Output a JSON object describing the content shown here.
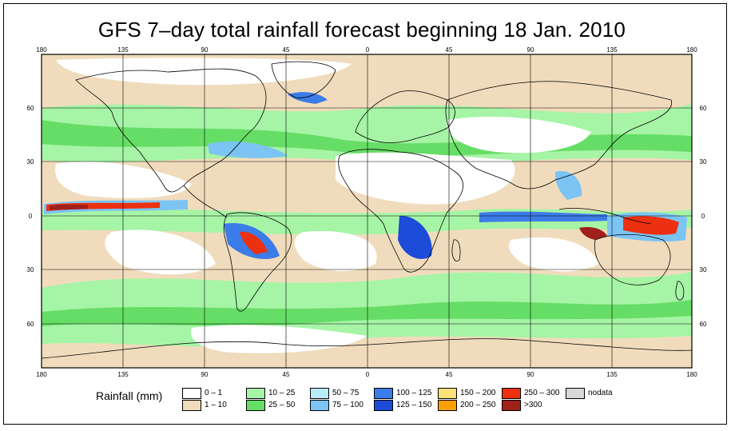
{
  "title": "GFS 7–day total rainfall forecast beginning 18 Jan. 2010",
  "axes": {
    "top_lon_labels": [
      "180",
      "135",
      "90",
      "45",
      "0",
      "45",
      "90",
      "135",
      "180"
    ],
    "bottom_lon_labels": [
      "180",
      "135",
      "90",
      "45",
      "0",
      "45",
      "90",
      "135",
      "180"
    ],
    "left_lat_labels": [
      "60",
      "30",
      "0",
      "30",
      "60"
    ],
    "right_lat_labels": [
      "60",
      "30",
      "0",
      "30",
      "60"
    ]
  },
  "legend": {
    "title": "Rainfall (mm)",
    "items": [
      {
        "label": "0 – 1",
        "color": "#ffffff"
      },
      {
        "label": "1 – 10",
        "color": "#f0dcbc"
      },
      {
        "label": "10 – 25",
        "color": "#a6f4a6"
      },
      {
        "label": "25 – 50",
        "color": "#66dd66"
      },
      {
        "label": "50 – 75",
        "color": "#b8ecf8"
      },
      {
        "label": "75 – 100",
        "color": "#7cc4f4"
      },
      {
        "label": "100 – 125",
        "color": "#3c7ce8"
      },
      {
        "label": "125 – 150",
        "color": "#1c4cd8"
      },
      {
        "label": "150 – 200",
        "color": "#fce078"
      },
      {
        "label": "200 – 250",
        "color": "#fca000"
      },
      {
        "label": "250 – 300",
        "color": "#ec3010"
      },
      {
        "label": ">300",
        "color": "#a0201c"
      },
      {
        "label": "nodata",
        "color": "#d8d8d8"
      }
    ]
  }
}
